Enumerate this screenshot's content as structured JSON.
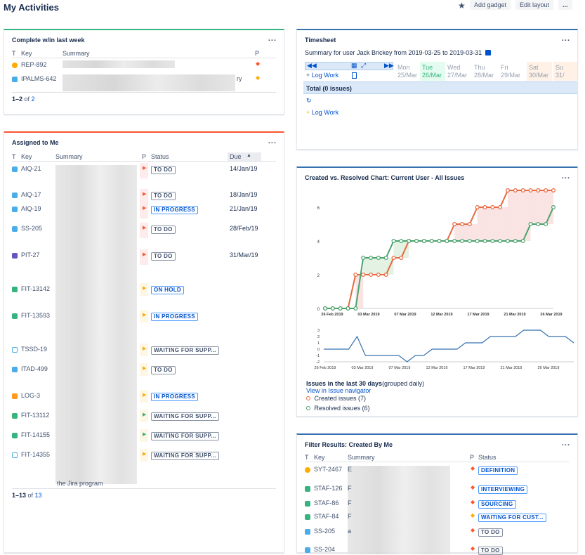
{
  "page": {
    "title": "My Activities",
    "add_gadget": "Add gadget",
    "edit_layout": "Edit layout",
    "more": "..."
  },
  "g1": {
    "title": "Complete w/in last week",
    "menu": "...",
    "cols": {
      "t": "T",
      "key": "Key",
      "summary": "Summary",
      "p": "P"
    },
    "rows": [
      {
        "key": "REP-892",
        "type": "idea",
        "priority": "highest"
      },
      {
        "key": "IPALMS-642",
        "type": "task",
        "priority": "medium",
        "frag": "ry"
      }
    ],
    "footer_a": "1–2",
    "footer_of": " of ",
    "footer_b": "2"
  },
  "g2": {
    "title": "Assigned to Me",
    "menu": "...",
    "cols": {
      "t": "T",
      "key": "Key",
      "summary": "Summary",
      "p": "P",
      "status": "Status",
      "due": "Due"
    },
    "rows": [
      {
        "key": "AIQ-21",
        "type": "task",
        "status": "TO DO",
        "status_color": "gray",
        "due": "14/Jan/19"
      },
      {
        "key": "AIQ-17",
        "type": "task",
        "status": "TO DO",
        "status_color": "gray",
        "due": "18/Jan/19"
      },
      {
        "key": "AIQ-19",
        "type": "task",
        "status": "IN PROGRESS",
        "status_color": "blue",
        "due": "21/Jan/19"
      },
      {
        "key": "SS-205",
        "type": "task",
        "status": "TO DO",
        "status_color": "gray",
        "due": "28/Feb/19"
      },
      {
        "key": "PIT-27",
        "type": "subtask",
        "status": "TO DO",
        "status_color": "gray",
        "due": "31/Mar/19"
      },
      {
        "key": "FIT-13142",
        "type": "story",
        "status": "ON HOLD",
        "status_color": "blue",
        "due": ""
      },
      {
        "key": "FIT-13593",
        "type": "story",
        "status": "IN PROGRESS",
        "status_color": "blue",
        "due": ""
      },
      {
        "key": "TSSD-19",
        "type": "service",
        "status": "WAITING FOR SUPP...",
        "status_color": "gray",
        "due": ""
      },
      {
        "key": "ITAD-499",
        "type": "task",
        "status": "TO DO",
        "status_color": "gray",
        "due": ""
      },
      {
        "key": "LOG-3",
        "type": "bug-orange",
        "status": "IN PROGRESS",
        "status_color": "blue",
        "due": ""
      },
      {
        "key": "FIT-13112",
        "type": "story",
        "status": "WAITING FOR SUPP...",
        "status_color": "gray",
        "due": ""
      },
      {
        "key": "FIT-14155",
        "type": "story",
        "status": "WAITING FOR SUPP...",
        "status_color": "gray",
        "due": ""
      },
      {
        "key": "FIT-14355",
        "type": "service",
        "status": "WAITING FOR SUPP...",
        "status_color": "gray",
        "due": ""
      }
    ],
    "frag": "the Jira program",
    "footer_a": "1–13",
    "footer_of": " of ",
    "footer_b": "13"
  },
  "g3": {
    "title": "Timesheet",
    "menu": "...",
    "summary": "Summary for user Jack Brickey from 2019-03-25 to 2019-03-31",
    "log_work": "Log Work",
    "total": "Total (0 issues)",
    "log_work2": "Log Work",
    "days": [
      {
        "d": "Mon",
        "n": "25/Mar"
      },
      {
        "d": "Tue",
        "n": "26/Mar"
      },
      {
        "d": "Wed",
        "n": "27/Mar"
      },
      {
        "d": "Thu",
        "n": "28/Mar"
      },
      {
        "d": "Fri",
        "n": "29/Mar"
      },
      {
        "d": "Sat",
        "n": "30/Mar"
      },
      {
        "d": "Su",
        "n": "31/"
      }
    ]
  },
  "g4": {
    "title": "Created vs. Resolved Chart: Current User - All Issues",
    "menu": "...",
    "caption_bold": "Issues in the last 30 days",
    "caption_rest": "(grouped daily)",
    "view_link": "View in Issue navigator",
    "legend_created": "Created issues (7)",
    "legend_resolved": "Resolved issues (6)"
  },
  "g5": {
    "title": "Filter Results: Created By Me",
    "menu": "...",
    "cols": {
      "t": "T",
      "key": "Key",
      "summary": "Summary",
      "p": "P",
      "status": "Status"
    },
    "rows": [
      {
        "key": "SYT-2467",
        "type": "idea",
        "priority": "highest",
        "status": "DEFINITION",
        "frag": "E"
      },
      {
        "key": "STAF-126",
        "type": "story",
        "priority": "highest",
        "status": "INTERVIEWING",
        "frag": "F"
      },
      {
        "key": "STAF-86",
        "type": "story",
        "priority": "highest",
        "status": "SOURCING",
        "frag": "F"
      },
      {
        "key": "STAF-84",
        "type": "story",
        "priority": "medium",
        "status": "WAITING FOR CUST...",
        "frag": "F"
      },
      {
        "key": "SS-205",
        "type": "task",
        "priority": "highest",
        "status": "TO DO",
        "frag": "a"
      },
      {
        "key": "SS-204",
        "type": "task",
        "priority": "highest",
        "status": "TO DO",
        "frag": ""
      }
    ]
  },
  "chart_data": [
    {
      "type": "line",
      "title": "",
      "x_ticks": [
        "26 Feb 2019",
        "03 Mar 2019",
        "07 Mar 2019",
        "12 Mar 2019",
        "17 Mar 2019",
        "21 Mar 2019",
        "26 Mar 2019"
      ],
      "y_ticks": [
        0,
        2,
        4,
        6
      ],
      "ylim": [
        0,
        7
      ],
      "series": [
        {
          "name": "Created issues (7)",
          "color": "#e8683f",
          "values": [
            0,
            0,
            0,
            0,
            2,
            2,
            2,
            2,
            2,
            3,
            3,
            4,
            4,
            4,
            4,
            4,
            4,
            5,
            5,
            5,
            6,
            6,
            6,
            6,
            7,
            7,
            7,
            7,
            7,
            7,
            7
          ]
        },
        {
          "name": "Resolved issues (6)",
          "color": "#49a36c",
          "values": [
            0,
            0,
            0,
            0,
            0,
            3,
            3,
            3,
            3,
            4,
            4,
            4,
            4,
            4,
            4,
            4,
            4,
            4,
            4,
            4,
            4,
            4,
            4,
            4,
            4,
            4,
            4,
            5,
            5,
            5,
            6
          ]
        }
      ]
    },
    {
      "type": "line",
      "title": "",
      "x_ticks": [
        "26 Feb 2019",
        "03 Mar 2019",
        "07 Mar 2019",
        "12 Mar 2019",
        "17 Mar 2019",
        "21 Mar 2019",
        "26 Mar 2019"
      ],
      "y_ticks": [
        3,
        2,
        1,
        0,
        -1,
        -2
      ],
      "ylim": [
        -2,
        3
      ],
      "series": [
        {
          "name": "",
          "color": "#3572b0",
          "values": [
            0,
            0,
            0,
            0,
            2,
            -1,
            -1,
            -1,
            -1,
            -1,
            -2,
            -1,
            -1,
            0,
            0,
            0,
            0,
            1,
            1,
            1,
            2,
            2,
            2,
            2,
            3,
            3,
            3,
            2,
            2,
            2,
            1
          ]
        }
      ]
    }
  ]
}
